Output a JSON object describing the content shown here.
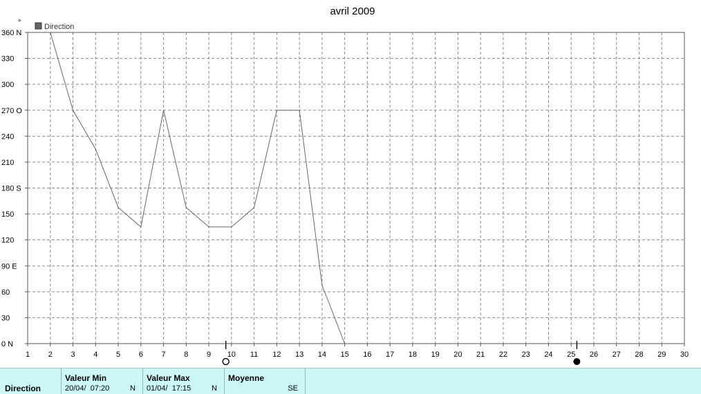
{
  "chart_data": {
    "type": "line",
    "title": "avril 2009",
    "y_unit_label": "°",
    "legend": [
      {
        "name": "Direction",
        "color": "#666666"
      }
    ],
    "legend_position": "top-left",
    "grid": true,
    "xlim": [
      1,
      30
    ],
    "ylim": [
      0,
      360
    ],
    "x_ticks": [
      "1",
      "2",
      "3",
      "4",
      "5",
      "6",
      "7",
      "8",
      "9",
      "10",
      "11",
      "12",
      "13",
      "14",
      "15",
      "16",
      "17",
      "18",
      "19",
      "20",
      "21",
      "22",
      "23",
      "24",
      "25",
      "26",
      "27",
      "28",
      "29",
      "30"
    ],
    "y_ticks": [
      {
        "value": 0,
        "label": "0   N"
      },
      {
        "value": 30,
        "label": "30"
      },
      {
        "value": 60,
        "label": "60"
      },
      {
        "value": 90,
        "label": "90   E"
      },
      {
        "value": 120,
        "label": "120"
      },
      {
        "value": 150,
        "label": "150"
      },
      {
        "value": 180,
        "label": "180 S"
      },
      {
        "value": 210,
        "label": "210"
      },
      {
        "value": 240,
        "label": "240"
      },
      {
        "value": 270,
        "label": "270 O"
      },
      {
        "value": 300,
        "label": "300"
      },
      {
        "value": 330,
        "label": "330"
      },
      {
        "value": 360,
        "label": "360 N"
      }
    ],
    "series": [
      {
        "name": "Direction",
        "color": "#666666",
        "x": [
          2,
          3,
          4,
          5,
          6,
          7,
          8,
          9,
          10,
          11,
          12,
          13,
          14,
          15
        ],
        "values": [
          360,
          270,
          225,
          157.5,
          135,
          270,
          157.5,
          135,
          135,
          157.5,
          270,
          270,
          67.5,
          0
        ]
      }
    ],
    "moon_phases": [
      {
        "x": 9.75,
        "phase": "full-moon"
      },
      {
        "x": 25.25,
        "phase": "new-moon"
      }
    ]
  },
  "stats": {
    "row_label": "Direction",
    "min": {
      "header": "Valeur Min",
      "date": "20/04/",
      "time": "07:20",
      "direction": "N"
    },
    "max": {
      "header": "Valeur Max",
      "date": "01/04/",
      "time": "17:15",
      "direction": "N"
    },
    "mean": {
      "header": "Moyenne",
      "direction": "SE"
    }
  },
  "colors": {
    "stats_bg": "#ccf7f7",
    "line": "#666666",
    "grid": "#8a8a8a"
  }
}
